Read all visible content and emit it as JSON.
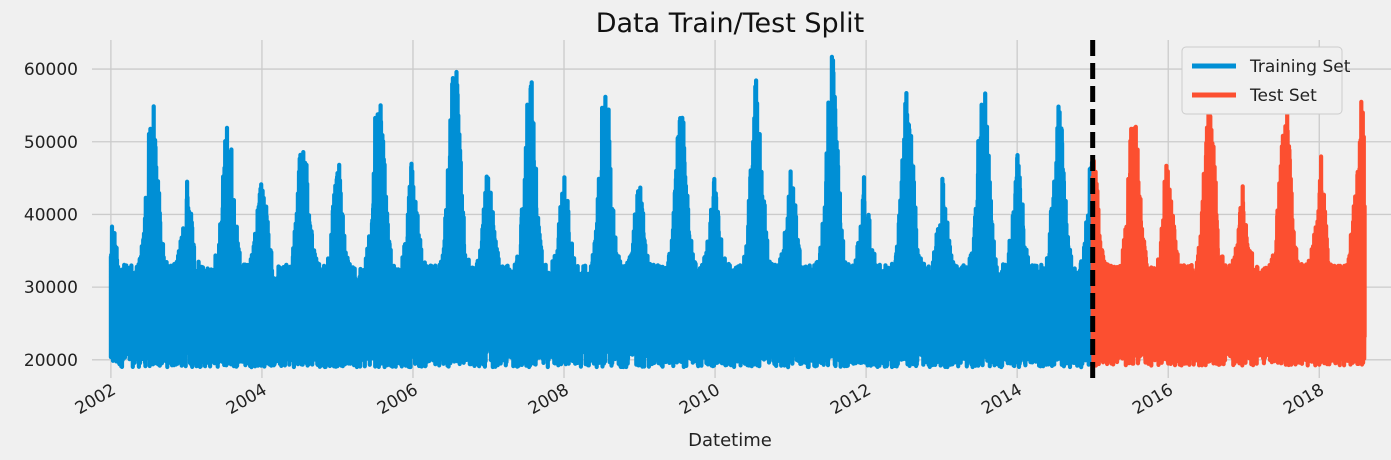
{
  "chart_data": {
    "type": "line",
    "title": "Data Train/Test Split",
    "xlabel": "Datetime",
    "ylabel": "",
    "x_ticks": [
      "2002",
      "2004",
      "2006",
      "2008",
      "2010",
      "2012",
      "2014",
      "2016",
      "2018"
    ],
    "y_ticks": [
      "20000",
      "30000",
      "40000",
      "50000",
      "60000"
    ],
    "xlim": [
      2001.75,
      2018.95
    ],
    "ylim": [
      17500,
      64000
    ],
    "grid": true,
    "legend_position": "top-right",
    "split_date": 2015.0,
    "series": [
      {
        "name": "Training Set",
        "color": "#008fd5",
        "x_range": [
          2002.0,
          2015.0
        ],
        "yearly_peaks": [
          {
            "year": 2002,
            "winter": 40000,
            "summer": 55900
          },
          {
            "year": 2003,
            "winter": 46300,
            "summer": 53800
          },
          {
            "year": 2004,
            "winter": 45600,
            "summer": 51900
          },
          {
            "year": 2005,
            "winter": 48000,
            "summer": 59100
          },
          {
            "year": 2006,
            "winter": 46100,
            "summer": 62000
          },
          {
            "year": 2007,
            "winter": 44700,
            "summer": 59500
          },
          {
            "year": 2008,
            "winter": 45500,
            "summer": 59700
          },
          {
            "year": 2009,
            "winter": 46000,
            "summer": 55500
          },
          {
            "year": 2010,
            "winter": 44000,
            "summer": 59800
          },
          {
            "year": 2011,
            "winter": 46500,
            "summer": 61800
          },
          {
            "year": 2012,
            "winter": 41000,
            "summer": 58000
          },
          {
            "year": 2013,
            "winter": 45400,
            "summer": 59200
          },
          {
            "year": 2014,
            "winter": 48900,
            "summer": 55000
          }
        ],
        "min_value": 19000
      },
      {
        "name": "Test Set",
        "color": "#fc4f30",
        "x_range": [
          2015.0,
          2018.6
        ],
        "yearly_peaks": [
          {
            "year": 2015,
            "winter": 49500,
            "summer": 55200
          },
          {
            "year": 2016,
            "winter": 44300,
            "summer": 56500
          },
          {
            "year": 2017,
            "winter": 41000,
            "summer": 55300
          },
          {
            "year": 2018,
            "winter": 49100,
            "summer": 57500
          }
        ],
        "min_value": 19200
      }
    ]
  }
}
